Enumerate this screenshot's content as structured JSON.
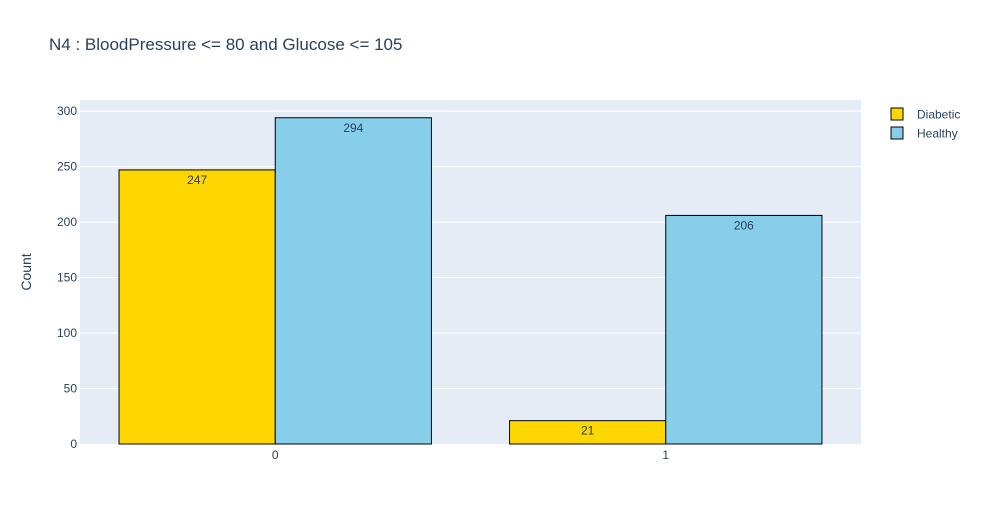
{
  "chart_data": {
    "type": "bar",
    "title": "N4 : BloodPressure <= 80 and Glucose <= 105",
    "xlabel": "",
    "ylabel": "Count",
    "categories": [
      "0",
      "1"
    ],
    "series": [
      {
        "name": "Diabetic",
        "values": [
          247,
          21
        ],
        "color": "#FFD700"
      },
      {
        "name": "Healthy",
        "values": [
          294,
          206
        ],
        "color": "#87CEEB"
      }
    ],
    "ylim": [
      0,
      310
    ],
    "yticks": [
      0,
      50,
      100,
      150,
      200,
      250,
      300
    ],
    "grid": true,
    "legend_position": "top-right",
    "plot_background": "#E5ECF6",
    "bar_outline": "#000000"
  }
}
